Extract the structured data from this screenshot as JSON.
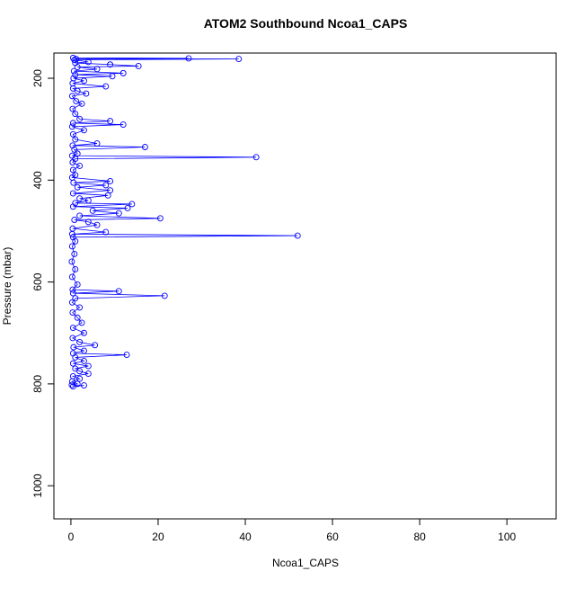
{
  "chart_data": {
    "type": "line",
    "title": "ATOM2 Southbound Ncoa1_CAPS",
    "x_label": "Ncoa1_CAPS",
    "y_label": "Pressure (mbar)",
    "x": [
      0.5,
      27,
      1.2,
      38.5,
      0.8,
      4,
      1,
      9,
      15.5,
      1.5,
      6,
      0.7,
      12,
      1,
      9.5,
      0.6,
      3,
      0.4,
      8,
      0.5,
      1.5,
      3.5,
      0.3,
      1.2,
      2.5,
      0.4,
      1,
      2,
      9,
      0.5,
      12,
      0.3,
      3,
      0.5,
      1,
      6,
      0.4,
      17,
      0.8,
      1.5,
      0.3,
      42.5,
      1,
      0.4,
      2,
      0.5,
      1,
      0.3,
      9,
      0.6,
      8,
      1.5,
      9,
      0.5,
      8.5,
      2,
      4,
      1,
      14,
      0.5,
      13,
      5,
      11,
      2,
      20.5,
      0.8,
      4,
      6,
      0.4,
      8,
      0.3,
      52,
      0.5,
      1,
      0.3,
      0.8,
      0.2,
      1,
      0.3,
      1.5,
      0.4,
      11,
      0.5,
      21.5,
      1,
      0.3,
      2,
      0.4,
      1.5,
      2.5,
      0.5,
      3,
      0.4,
      2,
      5.5,
      0.6,
      3,
      0.5,
      12.8,
      1,
      3,
      0.5,
      4,
      1,
      2,
      4,
      0.5,
      2,
      0.3,
      1.5,
      0.2,
      3,
      0.5
    ],
    "values": [
      160,
      161,
      162,
      162,
      164,
      168,
      170,
      173,
      176,
      178,
      182,
      186,
      190,
      193,
      196,
      200,
      205,
      210,
      216,
      220,
      225,
      230,
      235,
      245,
      250,
      260,
      270,
      280,
      284,
      288,
      291,
      295,
      302,
      310,
      320,
      328,
      332,
      335,
      340,
      348,
      352,
      355,
      358,
      365,
      372,
      380,
      390,
      395,
      402,
      405,
      410,
      414,
      420,
      426,
      430,
      436,
      440,
      445,
      447,
      452,
      455,
      460,
      465,
      470,
      475,
      478,
      482,
      488,
      495,
      502,
      506,
      509,
      512,
      520,
      530,
      545,
      560,
      575,
      590,
      605,
      615,
      618,
      622,
      627,
      632,
      640,
      650,
      660,
      670,
      680,
      690,
      700,
      710,
      718,
      724,
      728,
      735,
      740,
      743,
      748,
      755,
      760,
      765,
      770,
      775,
      780,
      785,
      790,
      795,
      800,
      802,
      803,
      805
    ],
    "color": "#0000ff",
    "marker": "circle",
    "y_inverted": true,
    "xlim": [
      -3.9,
      111.3
    ],
    "ylim": [
      150.5,
      1065
    ],
    "xticks": [
      0,
      20,
      40,
      60,
      80,
      100
    ],
    "yticks": [
      200,
      400,
      600,
      800,
      1000
    ]
  }
}
